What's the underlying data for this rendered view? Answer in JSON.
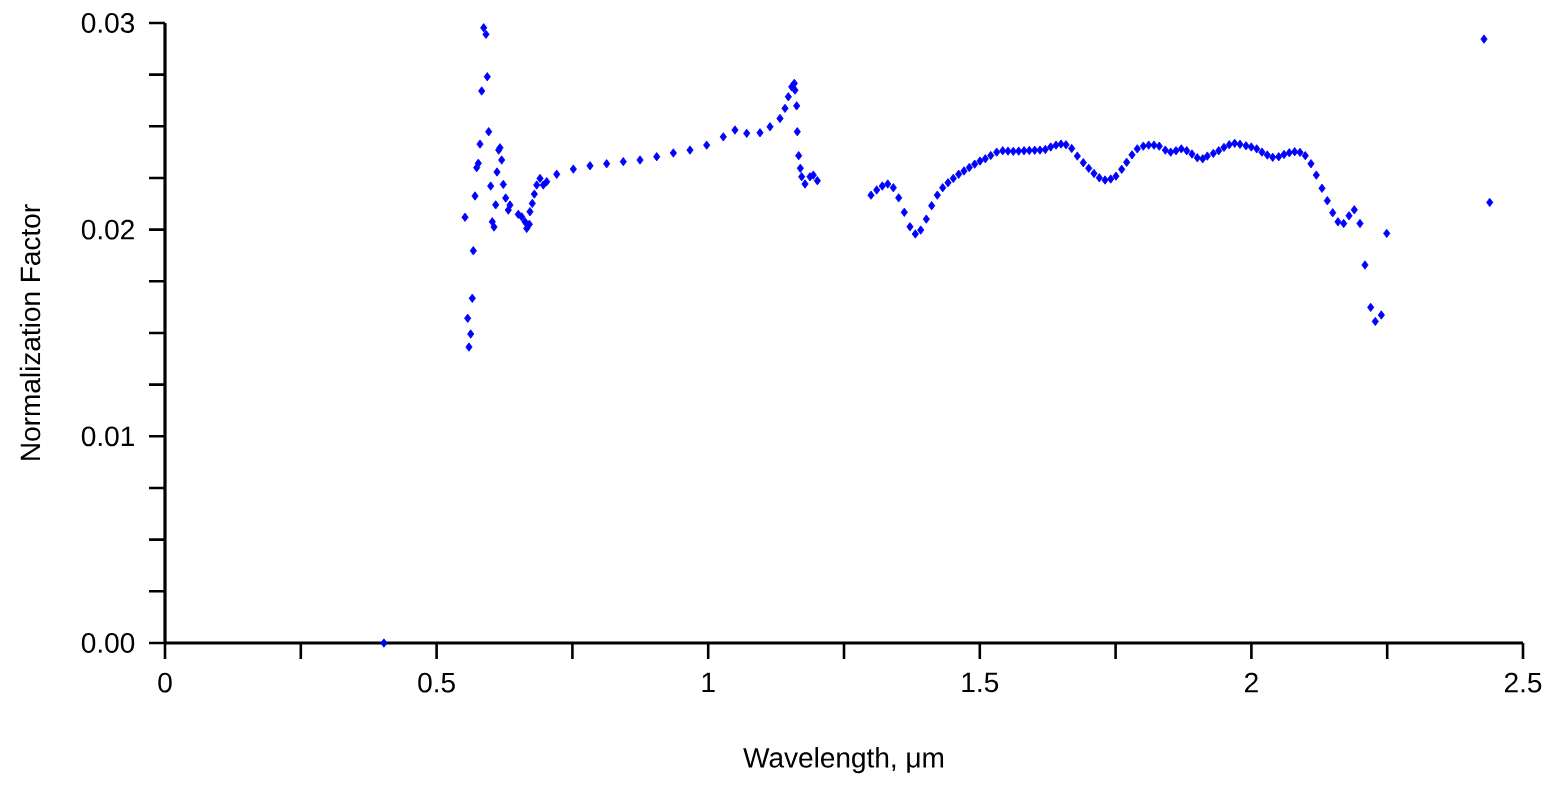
{
  "chart_data": {
    "type": "scatter",
    "xlabel": "Wavelength, μm",
    "ylabel": "Normalization Factor",
    "marker": "diamond",
    "x": [
      0.403,
      0.5523,
      0.5572,
      0.5596,
      0.5628,
      0.5657,
      0.5676,
      0.5707,
      0.5738,
      0.5768,
      0.5799,
      0.583,
      0.5867,
      0.5909,
      0.5933,
      0.5959,
      0.5996,
      0.6025,
      0.6057,
      0.6088,
      0.6112,
      0.6143,
      0.6167,
      0.6198,
      0.6228,
      0.6272,
      0.632,
      0.6351,
      0.6504,
      0.6567,
      0.6627,
      0.6659,
      0.6707,
      0.6719,
      0.6762,
      0.6799,
      0.6843,
      0.6904,
      0.6964,
      0.7027,
      0.7211,
      0.7517,
      0.7824,
      0.8131,
      0.8437,
      0.8745,
      0.9052,
      0.9358,
      0.9665,
      0.9972,
      1.0278,
      1.0493,
      1.0709,
      1.0954,
      1.1138,
      1.1322,
      1.1414,
      1.1475,
      1.1537,
      1.1585,
      1.1598,
      1.1629,
      1.164,
      1.1666,
      1.1696,
      1.1721,
      1.1782,
      1.1874,
      1.1935,
      1.2009,
      1.2997,
      1.3102,
      1.3205,
      1.3305,
      1.3408,
      1.3507,
      1.361,
      1.3715,
      1.3813,
      1.3912,
      1.4015,
      1.4114,
      1.4218,
      1.4317,
      1.4415,
      1.4512,
      1.4611,
      1.4709,
      1.4807,
      1.4906,
      1.5004,
      1.5101,
      1.5201,
      1.5311,
      1.5422,
      1.5519,
      1.5617,
      1.5716,
      1.5814,
      1.5911,
      1.6011,
      1.6108,
      1.6206,
      1.6305,
      1.6403,
      1.6495,
      1.6587,
      1.6692,
      1.6795,
      1.6905,
      1.7005,
      1.7102,
      1.72,
      1.7305,
      1.741,
      1.7507,
      1.7612,
      1.7704,
      1.7802,
      1.7899,
      1.801,
      1.8109,
      1.8207,
      1.8304,
      1.8415,
      1.8514,
      1.8612,
      1.871,
      1.8809,
      1.8906,
      1.9004,
      1.9103,
      1.9188,
      1.9299,
      1.9398,
      1.9495,
      1.9593,
      1.9692,
      1.979,
      1.9901,
      1.9998,
      2.0098,
      2.0195,
      2.0293,
      2.0392,
      2.0503,
      2.06,
      2.0698,
      2.0797,
      2.0895,
      2.0992,
      2.1097,
      2.1195,
      2.13,
      2.1398,
      2.1497,
      2.1594,
      2.1699,
      2.1797,
      2.1894,
      2.1999,
      2.2091,
      2.2196,
      2.2281,
      2.2392,
      2.2491,
      2.4282,
      2.4387
    ],
    "series": [
      {
        "color": "#0000ff",
        "values": [
          0,
          0.0206,
          0.01571,
          0.01432,
          0.01495,
          0.01668,
          0.01898,
          0.02163,
          0.023,
          0.02321,
          0.02414,
          0.02671,
          0.02977,
          0.02945,
          0.0274,
          0.02474,
          0.02211,
          0.02038,
          0.02013,
          0.0212,
          0.02279,
          0.02385,
          0.02396,
          0.02337,
          0.02219,
          0.02153,
          0.02095,
          0.02119,
          0.02074,
          0.02062,
          0.02038,
          0.02006,
          0.02026,
          0.02087,
          0.02127,
          0.02172,
          0.02216,
          0.02248,
          0.02216,
          0.02232,
          0.02268,
          0.02293,
          0.02309,
          0.02319,
          0.02329,
          0.02337,
          0.02353,
          0.02371,
          0.02385,
          0.02409,
          0.02449,
          0.02482,
          0.02466,
          0.02469,
          0.02498,
          0.02538,
          0.02587,
          0.02643,
          0.02691,
          0.02708,
          0.02675,
          0.02599,
          0.02474,
          0.02358,
          0.02297,
          0.02256,
          0.02221,
          0.02256,
          0.02264,
          0.02237,
          0.02167,
          0.02192,
          0.02211,
          0.02221,
          0.02203,
          0.02154,
          0.02084,
          0.02014,
          0.01979,
          0.01998,
          0.02051,
          0.02116,
          0.02167,
          0.02203,
          0.02227,
          0.02248,
          0.02268,
          0.02284,
          0.02301,
          0.02317,
          0.02332,
          0.02343,
          0.02359,
          0.02375,
          0.02382,
          0.0238,
          0.02379,
          0.0238,
          0.02382,
          0.02383,
          0.02384,
          0.02385,
          0.02388,
          0.024,
          0.02409,
          0.02414,
          0.02411,
          0.02393,
          0.02356,
          0.02324,
          0.02297,
          0.02272,
          0.02251,
          0.0224,
          0.02245,
          0.02259,
          0.02292,
          0.02326,
          0.02362,
          0.02391,
          0.02404,
          0.02409,
          0.02409,
          0.02404,
          0.02385,
          0.02375,
          0.02382,
          0.02391,
          0.02382,
          0.02366,
          0.02348,
          0.02343,
          0.02356,
          0.02369,
          0.02382,
          0.02398,
          0.02411,
          0.02418,
          0.02413,
          0.02406,
          0.024,
          0.02391,
          0.02375,
          0.02361,
          0.0235,
          0.02353,
          0.02364,
          0.02372,
          0.02377,
          0.02374,
          0.02358,
          0.02319,
          0.02264,
          0.022,
          0.0214,
          0.02082,
          0.02038,
          0.0203,
          0.02067,
          0.02096,
          0.0203,
          0.01829,
          0.01624,
          0.01556,
          0.01587,
          0.01982,
          0.02922,
          0.02132
        ]
      }
    ],
    "xlim": [
      0,
      2.5
    ],
    "xticks": [
      0,
      {
        "value": 0.25,
        "label": null
      },
      0.5,
      {
        "value": 0.75,
        "label": null
      },
      1,
      {
        "value": 1.25,
        "label": null
      },
      1.5,
      {
        "value": 1.75,
        "label": null
      },
      2,
      {
        "value": 2.25,
        "label": null
      },
      2.5
    ],
    "ylim": [
      0,
      0.03
    ],
    "yticks": [
      {
        "value": 0,
        "label": "0.00"
      },
      {
        "value": 0.0025,
        "label": null
      },
      {
        "value": 0.005,
        "label": null
      },
      {
        "value": 0.0075,
        "label": null
      },
      0.01,
      {
        "value": 0.0125,
        "label": null
      },
      {
        "value": 0.015,
        "label": null
      },
      {
        "value": 0.0175,
        "label": null
      },
      0.02,
      {
        "value": 0.0225,
        "label": null
      },
      {
        "value": 0.025,
        "label": null
      },
      {
        "value": 0.0275,
        "label": null
      },
      0.03
    ]
  }
}
